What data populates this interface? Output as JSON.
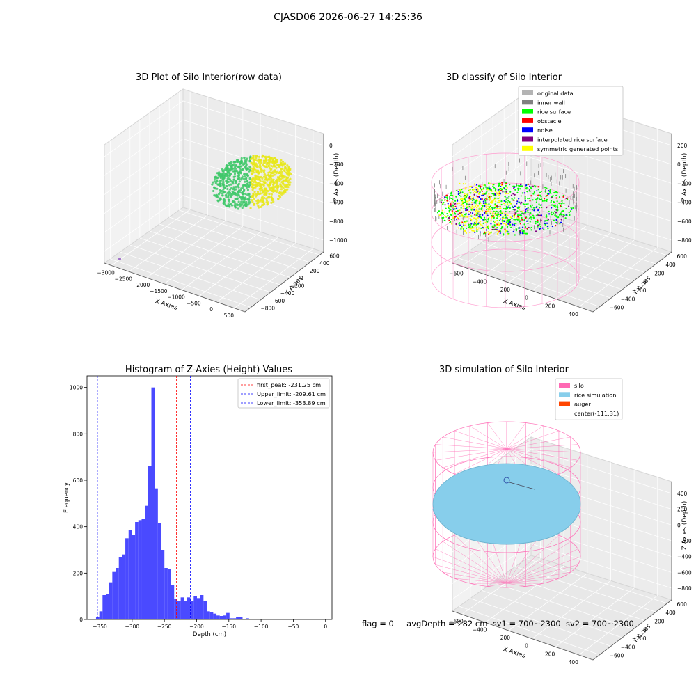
{
  "figure": {
    "title": "CJASD06 2026-06-27 14:25:36",
    "footer": {
      "flag": "flag = 0",
      "avg_depth": "avgDepth = 282 cm",
      "sv1": "sv1 = 700~2300",
      "sv2": "sv2 = 700~2300"
    }
  },
  "chart_data": [
    {
      "type": "scatter",
      "title": "3D Plot of Silo Interior(row data)",
      "xlabel": "X Axies",
      "ylabel": "Y Axies",
      "zlabel": "Z Axies (Depth)",
      "x_ticks": [
        "−3000",
        "−2500",
        "−2000",
        "−1500",
        "−1000",
        "−500",
        "0",
        "500"
      ],
      "y_ticks": [
        "600",
        "400",
        "200",
        "0",
        "−200",
        "−400",
        "−600",
        "−800"
      ],
      "z_ticks": [
        "0",
        "−200",
        "−400",
        "−600",
        "−800",
        "−1000"
      ],
      "colors": {
        "surface_high": "#e8e81a",
        "surface_low": "#3fc86a",
        "outlier": "#a070c8"
      }
    },
    {
      "type": "scatter",
      "title": "3D classify of Silo Interior",
      "xlabel": "X Axies",
      "ylabel": "Y Axies",
      "zlabel": "Z Axies (Depth)",
      "x_ticks": [
        "−600",
        "−400",
        "−200",
        "0",
        "200",
        "400"
      ],
      "y_ticks": [
        "600",
        "400",
        "200",
        "0",
        "−200",
        "−400",
        "−600"
      ],
      "z_ticks": [
        "200",
        "0",
        "−200",
        "−400",
        "−600",
        "−800"
      ],
      "legend": [
        {
          "label": "original data",
          "color": "#b4b4b4"
        },
        {
          "label": "inner wall",
          "color": "#808080"
        },
        {
          "label": "rice surface",
          "color": "#00ff00"
        },
        {
          "label": "obstacle",
          "color": "#ff0000"
        },
        {
          "label": "noise",
          "color": "#0000ff"
        },
        {
          "label": "interpolated rice surface",
          "color": "#800080"
        },
        {
          "label": "symmetric generated points",
          "color": "#ffff00"
        }
      ]
    },
    {
      "type": "bar",
      "title": "Histogram of Z-Axies (Height) Values",
      "xlabel": "Depth (cm)",
      "ylabel": "Frequency",
      "xlim": [
        -370,
        10
      ],
      "ylim": [
        0,
        1050
      ],
      "x_ticks": [
        -350,
        -300,
        -250,
        -200,
        -150,
        -100,
        -50,
        0
      ],
      "y_ticks": [
        0,
        200,
        400,
        600,
        800,
        1000
      ],
      "bar_color": "#4a4aff",
      "bin_start": -356,
      "bin_width": 5.05,
      "values": [
        12,
        35,
        105,
        108,
        160,
        205,
        222,
        268,
        280,
        350,
        385,
        365,
        420,
        428,
        435,
        490,
        660,
        1000,
        565,
        415,
        300,
        222,
        218,
        150,
        90,
        80,
        95,
        78,
        95,
        80,
        100,
        92,
        105,
        78,
        35,
        32,
        25,
        17,
        15,
        17,
        28,
        5,
        5,
        10,
        10,
        3,
        5,
        3
      ],
      "vlines": [
        {
          "label": "first_peak: -231.25 cm",
          "value": -231.25,
          "color": "#ff0000"
        },
        {
          "label": "Upper_limit: -209.61 cm",
          "value": -209.61,
          "color": "#0000ff"
        },
        {
          "label": "Lower_limit: -353.89 cm",
          "value": -353.89,
          "color": "#0000ff"
        }
      ]
    },
    {
      "type": "scatter",
      "title": "3D simulation of Silo Interior",
      "xlabel": "X Axies",
      "ylabel": "Y Axies",
      "zlabel": "Z Axies (Depth)",
      "x_ticks": [
        "−600",
        "−400",
        "−200",
        "0",
        "200",
        "400"
      ],
      "y_ticks": [
        "600",
        "400",
        "200",
        "0",
        "−200",
        "−400",
        "−600"
      ],
      "z_ticks": [
        "400",
        "200",
        "0",
        "−200",
        "−400",
        "−600",
        "−800"
      ],
      "legend": [
        {
          "label": "silo",
          "color": "#ff69b4"
        },
        {
          "label": "rice simulation",
          "color": "#87ceeb"
        },
        {
          "label": "auger",
          "color": "#ff4500"
        },
        {
          "label": "center(-111,31)",
          "color": ""
        }
      ]
    }
  ]
}
